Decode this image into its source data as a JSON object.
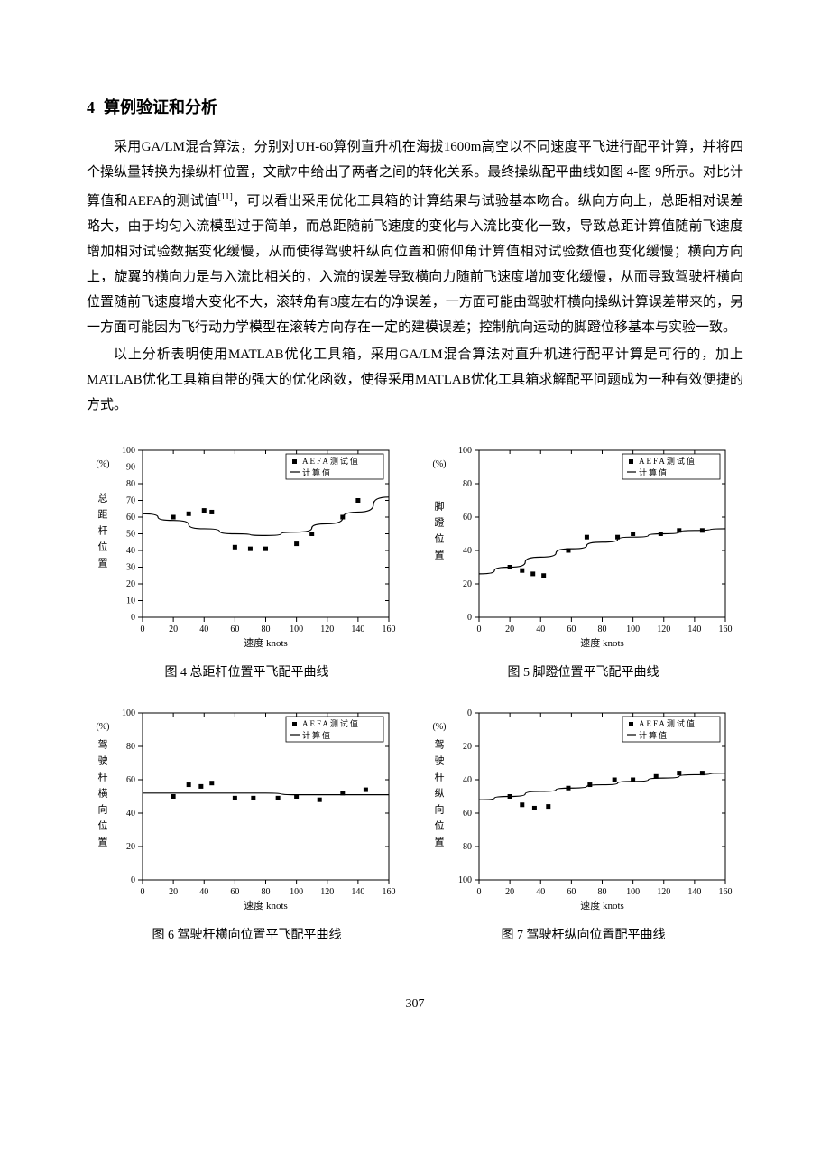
{
  "section": {
    "number": "4",
    "title": "算例验证和分析"
  },
  "paragraphs": {
    "p1a": "采用GA/LM混合算法，分别对UH-60算例直升机在海拔1600m高空以不同速度平飞进行配平计算，并将四个操纵量转换为操纵杆位置，文献7中给出了两者之间的转化关系。最终操纵配平曲线如图 4-图 9所示。对比计算值和AEFA的测试值",
    "p1ref": "[11]",
    "p1b": "，可以看出采用优化工具箱的计算结果与试验基本吻合。纵向方向上，总距相对误差略大，由于均匀入流模型过于简单，而总距随前飞速度的变化与入流比变化一致，导致总距计算值随前飞速度增加相对试验数据变化缓慢，从而使得驾驶杆纵向位置和俯仰角计算值相对试验数值也变化缓慢；横向方向上，旋翼的横向力是与入流比相关的，入流的误差导致横向力随前飞速度增加变化缓慢，从而导致驾驶杆横向位置随前飞速度增大变化不大，滚转角有3度左右的净误差，一方面可能由驾驶杆横向操纵计算误差带来的，另一方面可能因为飞行动力学模型在滚转方向存在一定的建模误差；控制航向运动的脚蹬位移基本与实验一致。",
    "p2": "以上分析表明使用MATLAB优化工具箱，采用GA/LM混合算法对直升机进行配平计算是可行的，加上MATLAB优化工具箱自带的强大的优化函数，使得采用MATLAB优化工具箱求解配平问题成为一种有效便捷的方式。"
  },
  "legend": {
    "series1": "AEFA测试值",
    "series2": "计算值"
  },
  "xaxis": {
    "label": "速度 knots",
    "min": 0,
    "max": 160,
    "step": 20
  },
  "fig4": {
    "caption": "图 4  总距杆位置平飞配平曲线",
    "ylabel": "总距杆位置(%)",
    "ymin": 0,
    "ymax": 100,
    "ystep": 10,
    "yinvert": false,
    "scatter": [
      [
        20,
        60
      ],
      [
        30,
        62
      ],
      [
        40,
        64
      ],
      [
        45,
        63
      ],
      [
        60,
        42
      ],
      [
        70,
        41
      ],
      [
        80,
        41
      ],
      [
        100,
        44
      ],
      [
        110,
        50
      ],
      [
        130,
        60
      ],
      [
        140,
        70
      ]
    ],
    "line": [
      [
        0,
        62
      ],
      [
        20,
        58
      ],
      [
        40,
        53
      ],
      [
        60,
        50
      ],
      [
        80,
        49
      ],
      [
        100,
        51
      ],
      [
        120,
        56
      ],
      [
        140,
        63
      ],
      [
        160,
        72
      ]
    ]
  },
  "fig5": {
    "caption": "图 5  脚蹬位置平飞配平曲线",
    "ylabel": "脚蹬位置(%)",
    "ymin": 0,
    "ymax": 100,
    "ystep": 20,
    "yinvert": false,
    "scatter": [
      [
        20,
        30
      ],
      [
        28,
        28
      ],
      [
        35,
        26
      ],
      [
        42,
        25
      ],
      [
        58,
        40
      ],
      [
        70,
        48
      ],
      [
        90,
        48
      ],
      [
        100,
        50
      ],
      [
        118,
        50
      ],
      [
        130,
        52
      ],
      [
        145,
        52
      ]
    ],
    "line": [
      [
        0,
        26
      ],
      [
        20,
        30
      ],
      [
        40,
        36
      ],
      [
        60,
        41
      ],
      [
        80,
        45
      ],
      [
        100,
        48
      ],
      [
        120,
        50
      ],
      [
        140,
        52
      ],
      [
        160,
        53
      ]
    ]
  },
  "fig6": {
    "caption": "图 6  驾驶杆横向位置平飞配平曲线",
    "ylabel": "驾驶杆横向位置(%)",
    "ymin": 0,
    "ymax": 100,
    "ystep": 20,
    "yinvert": false,
    "scatter": [
      [
        20,
        50
      ],
      [
        30,
        57
      ],
      [
        38,
        56
      ],
      [
        45,
        58
      ],
      [
        60,
        49
      ],
      [
        72,
        49
      ],
      [
        88,
        49
      ],
      [
        100,
        50
      ],
      [
        115,
        48
      ],
      [
        130,
        52
      ],
      [
        145,
        54
      ]
    ],
    "line": [
      [
        0,
        52
      ],
      [
        20,
        52
      ],
      [
        40,
        52
      ],
      [
        60,
        52
      ],
      [
        80,
        52
      ],
      [
        100,
        51
      ],
      [
        120,
        51
      ],
      [
        140,
        51
      ],
      [
        160,
        51
      ]
    ]
  },
  "fig7": {
    "caption": "图 7  驾驶杆纵向位置配平曲线",
    "ylabel": "驾驶杆纵向位置(%)",
    "ymin": 0,
    "ymax": 100,
    "ystep": 20,
    "yinvert": true,
    "scatter": [
      [
        20,
        50
      ],
      [
        28,
        55
      ],
      [
        36,
        57
      ],
      [
        45,
        56
      ],
      [
        58,
        45
      ],
      [
        72,
        43
      ],
      [
        88,
        40
      ],
      [
        100,
        40
      ],
      [
        115,
        38
      ],
      [
        130,
        36
      ],
      [
        145,
        36
      ]
    ],
    "line": [
      [
        0,
        52
      ],
      [
        20,
        50
      ],
      [
        40,
        47
      ],
      [
        60,
        45
      ],
      [
        80,
        43
      ],
      [
        100,
        41
      ],
      [
        120,
        39
      ],
      [
        140,
        37
      ],
      [
        160,
        36
      ]
    ]
  },
  "page_number": "307"
}
